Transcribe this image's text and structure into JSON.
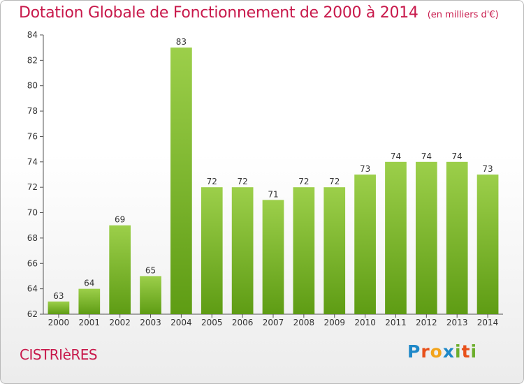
{
  "title": "Dotation Globale de Fonctionnement de 2000 à 2014",
  "unit_note": "(en milliers d'€)",
  "commune": "CISTRIèRES",
  "logo": {
    "letters": [
      "P",
      "r",
      "o",
      "x",
      "i",
      "t",
      "i"
    ],
    "colors": [
      "#1e88c8",
      "#e8501a",
      "#f2a41b",
      "#1e88c8",
      "#6cae2c",
      "#e8501a",
      "#6cae2c"
    ]
  },
  "colors": {
    "bar_top": "#9ccf4a",
    "bar_bottom": "#5e9c14",
    "title": "#c8194b"
  },
  "chart_data": {
    "type": "bar",
    "title": "Dotation Globale de Fonctionnement de 2000 à 2014",
    "categories": [
      "2000",
      "2001",
      "2002",
      "2003",
      "2004",
      "2005",
      "2006",
      "2007",
      "2008",
      "2009",
      "2010",
      "2011",
      "2012",
      "2013",
      "2014"
    ],
    "values": [
      63,
      64,
      69,
      65,
      83,
      72,
      72,
      71,
      72,
      72,
      73,
      74,
      74,
      74,
      73
    ],
    "value_labels": [
      "63",
      "64",
      "69",
      "65",
      "83",
      "72",
      "72",
      "71",
      "72",
      "72",
      "73",
      "74",
      "74",
      "74",
      "73"
    ],
    "ylim": [
      62,
      84
    ],
    "yticks": [
      62,
      64,
      66,
      68,
      70,
      72,
      74,
      76,
      78,
      80,
      82,
      84
    ],
    "ytick_labels": [
      "62",
      "64",
      "66",
      "68",
      "70",
      "72",
      "74",
      "76",
      "78",
      "80",
      "82",
      "84"
    ],
    "grid": false,
    "legend": "none"
  }
}
